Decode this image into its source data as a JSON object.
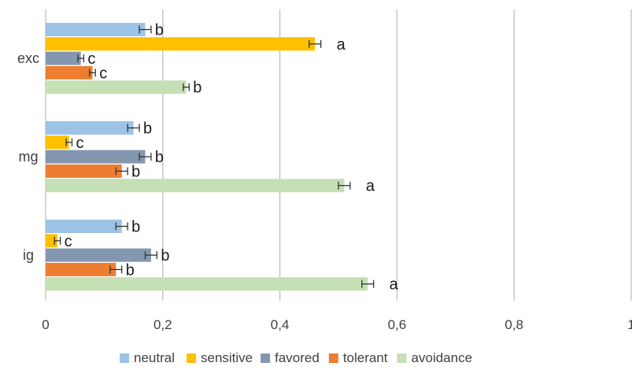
{
  "chart_data": {
    "type": "bar",
    "orientation": "horizontal",
    "categories": [
      "exc",
      "mg",
      "ig"
    ],
    "series": [
      {
        "name": "neutral",
        "color": "#9dc3e6",
        "values": [
          0.17,
          0.15,
          0.13
        ],
        "errors": [
          0.01,
          0.01,
          0.01
        ],
        "labels": [
          "b",
          "b",
          "b"
        ]
      },
      {
        "name": "sensitive",
        "color": "#ffc000",
        "values": [
          0.46,
          0.04,
          0.02
        ],
        "errors": [
          0.01,
          0.005,
          0.005
        ],
        "labels": [
          "a",
          "c",
          "c"
        ]
      },
      {
        "name": "favored",
        "color": "#8497b0",
        "values": [
          0.06,
          0.17,
          0.18
        ],
        "errors": [
          0.005,
          0.01,
          0.01
        ],
        "labels": [
          "c",
          "b",
          "b"
        ]
      },
      {
        "name": "tolerant",
        "color": "#ed7d31",
        "values": [
          0.08,
          0.13,
          0.12
        ],
        "errors": [
          0.005,
          0.01,
          0.01
        ],
        "labels": [
          "c",
          "b",
          "b"
        ]
      },
      {
        "name": "avoidance",
        "color": "#c5e0b4",
        "values": [
          0.24,
          0.51,
          0.55
        ],
        "errors": [
          0.005,
          0.01,
          0.01
        ],
        "labels": [
          "b",
          "a",
          "a"
        ]
      }
    ],
    "xlim": [
      0,
      1
    ],
    "ticks": [
      "0",
      "0,2",
      "0,4",
      "0,6",
      "0,8",
      "1"
    ],
    "tick_values": [
      0,
      0.2,
      0.4,
      0.6,
      0.8,
      1
    ],
    "grid": true,
    "legend": "bottom",
    "title": "",
    "xlabel": "",
    "ylabel": ""
  }
}
